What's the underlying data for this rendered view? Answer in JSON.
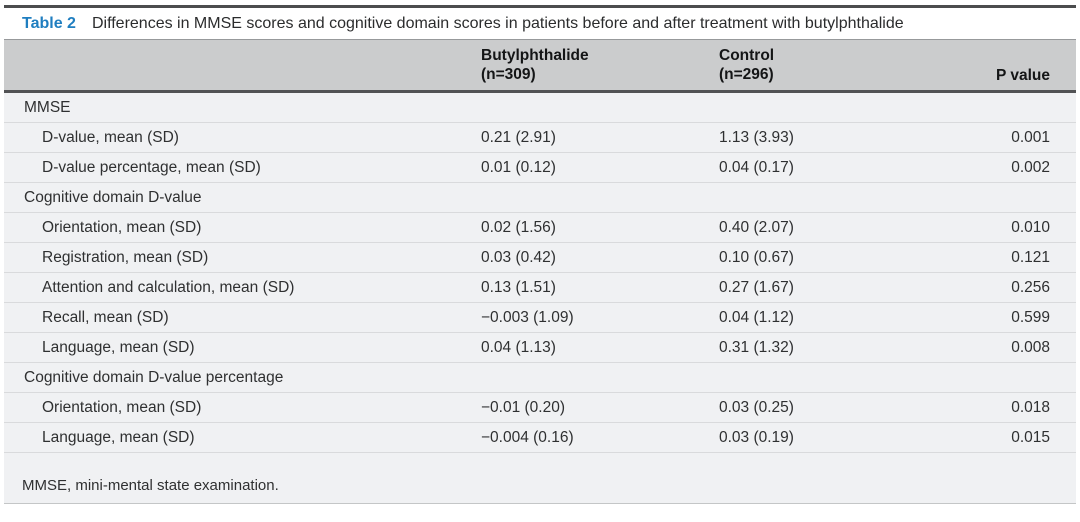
{
  "colors": {
    "accent-blue": "#1f7ec0",
    "header-band": "#cbcccd",
    "body-bg": "#f0f1f3",
    "row-line": "#d9dadc",
    "dark-rule": "#4c4d4e",
    "mid-rule": "#97999b",
    "bottom-rule": "#c4c6c7",
    "text": "#2b2c2d"
  },
  "caption": {
    "label": "Table 2",
    "title": "Differences in MMSE scores and cognitive domain scores in patients before and after treatment with butylphthalide"
  },
  "header": {
    "group1_line1": "Butylphthalide",
    "group1_line2": "(n=309)",
    "group2_line1": "Control",
    "group2_line2": "(n=296)",
    "pvalue": "P value"
  },
  "chart_data": {
    "type": "table",
    "title": "Table 2 Differences in MMSE scores and cognitive domain scores in patients before and after treatment with butylphthalide",
    "columns": [
      "",
      "Butylphthalide (n=309)",
      "Control (n=296)",
      "P value"
    ],
    "rows": [
      {
        "type": "section",
        "label": "MMSE"
      },
      {
        "type": "data",
        "label": "D-value, mean (SD)",
        "butylphthalide": "0.21 (2.91)",
        "control": "1.13 (3.93)",
        "p": "0.001"
      },
      {
        "type": "data",
        "label": "D-value percentage, mean (SD)",
        "butylphthalide": "0.01 (0.12)",
        "control": "0.04 (0.17)",
        "p": "0.002"
      },
      {
        "type": "section",
        "label": "Cognitive domain D-value"
      },
      {
        "type": "data",
        "label": "Orientation, mean (SD)",
        "butylphthalide": "0.02 (1.56)",
        "control": "0.40 (2.07)",
        "p": "0.010"
      },
      {
        "type": "data",
        "label": "Registration, mean (SD)",
        "butylphthalide": "0.03 (0.42)",
        "control": "0.10 (0.67)",
        "p": "0.121"
      },
      {
        "type": "data",
        "label": "Attention and calculation, mean (SD)",
        "butylphthalide": "0.13 (1.51)",
        "control": "0.27 (1.67)",
        "p": "0.256"
      },
      {
        "type": "data",
        "label": "Recall, mean (SD)",
        "butylphthalide": "−0.003 (1.09)",
        "control": "0.04 (1.12)",
        "p": "0.599"
      },
      {
        "type": "data",
        "label": "Language, mean (SD)",
        "butylphthalide": "0.04 (1.13)",
        "control": "0.31 (1.32)",
        "p": "0.008"
      },
      {
        "type": "section",
        "label": "Cognitive domain D-value percentage"
      },
      {
        "type": "data",
        "label": "Orientation, mean (SD)",
        "butylphthalide": "−0.01 (0.20)",
        "control": "0.03 (0.25)",
        "p": "0.018"
      },
      {
        "type": "data",
        "label": "Language, mean (SD)",
        "butylphthalide": "−0.004 (0.16)",
        "control": "0.03 (0.19)",
        "p": "0.015"
      }
    ],
    "footnote": "MMSE, mini-mental state examination."
  }
}
